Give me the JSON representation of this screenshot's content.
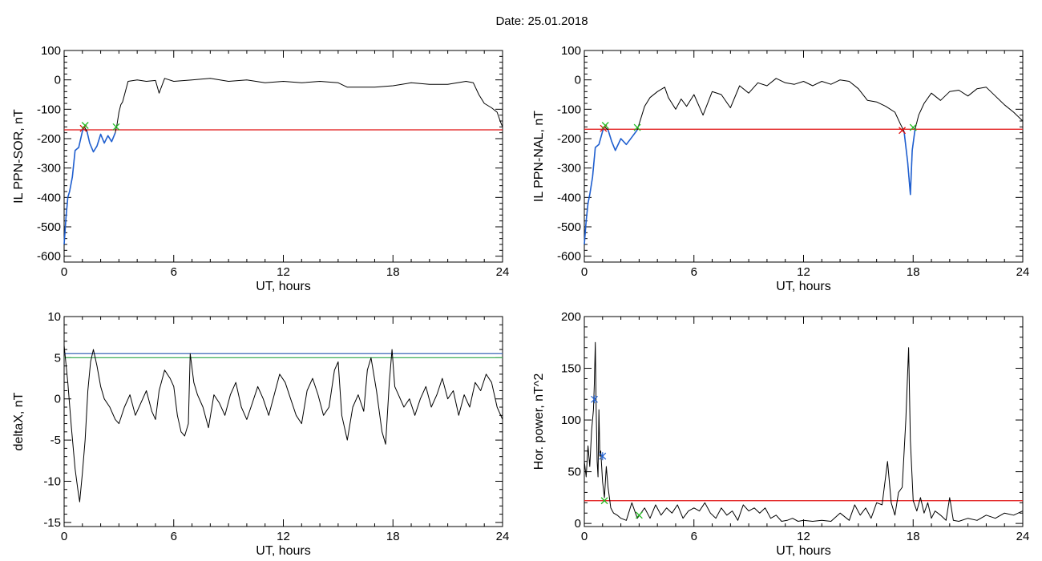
{
  "title": "Date:  25.01.2018",
  "colors": {
    "trace": "#000000",
    "highlight": "#1f5fd0",
    "threshold": "#e01010",
    "marker_start": "#e01010",
    "marker_end": "#22bb22",
    "marker_peak": "#1f5fd0",
    "ref_line_1": "#3b66b8",
    "ref_line_2": "#3fae5a"
  },
  "chart_data": [
    {
      "id": "il-ppn-sor",
      "type": "line",
      "title": "",
      "xlabel": "UT, hours",
      "ylabel": "IL PPN-SOR, nT",
      "xlim": [
        0,
        24
      ],
      "ylim": [
        -620,
        100
      ],
      "xticks": [
        0,
        6,
        12,
        18,
        24
      ],
      "yticks": [
        100,
        0,
        -100,
        -200,
        -300,
        -400,
        -500,
        -600
      ],
      "threshold": -170,
      "series": [
        {
          "role": "trace",
          "x": [
            0,
            0.1,
            0.2,
            0.3,
            0.45,
            0.6,
            0.8,
            1.0,
            1.1,
            1.25,
            1.4,
            1.6,
            1.8,
            2.0,
            2.2,
            2.4,
            2.6,
            2.8,
            2.9,
            3.0,
            3.1,
            3.2,
            3.35,
            3.5,
            4.0,
            4.5,
            5.0,
            5.2,
            5.5,
            6.0,
            7.0,
            8.0,
            9.0,
            10.0,
            11.0,
            12.0,
            13.0,
            14.0,
            15.0,
            15.5,
            16.0,
            17.0,
            18.0,
            19.0,
            20.0,
            21.0,
            22.0,
            22.4,
            22.7,
            23.0,
            23.4,
            23.7,
            23.9,
            24.0
          ],
          "y": [
            -560,
            -470,
            -400,
            -380,
            -330,
            -240,
            -230,
            -175,
            -160,
            -175,
            -215,
            -245,
            -225,
            -185,
            -215,
            -190,
            -210,
            -180,
            -150,
            -110,
            -85,
            -75,
            -40,
            -5,
            0,
            -5,
            -2,
            -45,
            5,
            -5,
            0,
            5,
            -5,
            0,
            -10,
            -5,
            -10,
            -5,
            -10,
            -25,
            -25,
            -25,
            -20,
            -10,
            -15,
            -15,
            -5,
            -10,
            -50,
            -80,
            -95,
            -110,
            -145,
            -160
          ]
        },
        {
          "role": "event",
          "x": [
            0.0,
            0.1,
            0.2,
            0.3,
            0.45,
            0.6,
            0.8,
            1.0,
            1.1
          ],
          "y": [
            -560,
            -470,
            -400,
            -380,
            -330,
            -240,
            -230,
            -175,
            -160
          ]
        },
        {
          "role": "event",
          "x": [
            1.25,
            1.4,
            1.6,
            1.8,
            2.0,
            2.2,
            2.4,
            2.6,
            2.8
          ],
          "y": [
            -175,
            -215,
            -245,
            -225,
            -185,
            -215,
            -190,
            -210,
            -180
          ]
        }
      ],
      "markers": [
        {
          "kind": "start",
          "x": 1.05,
          "y": -165
        },
        {
          "kind": "end",
          "x": 1.15,
          "y": -155
        },
        {
          "kind": "end",
          "x": 2.85,
          "y": -160
        }
      ]
    },
    {
      "id": "il-ppn-nal",
      "type": "line",
      "title": "",
      "xlabel": "UT, hours",
      "ylabel": "IL PPN-NAL, nT",
      "xlim": [
        0,
        24
      ],
      "ylim": [
        -620,
        100
      ],
      "xticks": [
        0,
        6,
        12,
        18,
        24
      ],
      "yticks": [
        100,
        0,
        -100,
        -200,
        -300,
        -400,
        -500,
        -600
      ],
      "threshold": -168,
      "series": [
        {
          "role": "trace",
          "x": [
            0,
            0.1,
            0.2,
            0.3,
            0.45,
            0.6,
            0.8,
            1.0,
            1.1,
            1.3,
            1.5,
            1.7,
            2.0,
            2.3,
            2.6,
            2.9,
            3.1,
            3.3,
            3.6,
            4.0,
            4.4,
            4.6,
            5.0,
            5.3,
            5.6,
            6.0,
            6.5,
            7.0,
            7.5,
            8.0,
            8.5,
            9.0,
            9.5,
            10.0,
            10.5,
            11.0,
            11.5,
            12.0,
            12.5,
            13.0,
            13.5,
            14.0,
            14.5,
            15.0,
            15.5,
            16.0,
            16.5,
            17.0,
            17.3,
            17.5,
            17.7,
            17.85,
            17.95,
            18.1,
            18.3,
            18.6,
            19.0,
            19.5,
            20.0,
            20.5,
            21.0,
            21.5,
            22.0,
            22.5,
            23.0,
            23.5,
            24.0
          ],
          "y": [
            -560,
            -480,
            -420,
            -390,
            -330,
            -230,
            -220,
            -175,
            -160,
            -170,
            -210,
            -240,
            -200,
            -220,
            -195,
            -170,
            -130,
            -90,
            -60,
            -40,
            -25,
            -60,
            -100,
            -65,
            -90,
            -50,
            -120,
            -40,
            -50,
            -95,
            -20,
            -45,
            -10,
            -20,
            5,
            -10,
            -15,
            -5,
            -20,
            -5,
            -15,
            0,
            -5,
            -30,
            -70,
            -75,
            -90,
            -110,
            -150,
            -175,
            -280,
            -390,
            -240,
            -170,
            -120,
            -80,
            -45,
            -70,
            -40,
            -35,
            -55,
            -30,
            -25,
            -55,
            -85,
            -110,
            -140
          ]
        },
        {
          "role": "event",
          "x": [
            0.0,
            0.1,
            0.2,
            0.3,
            0.45,
            0.6,
            0.8,
            1.0,
            1.1
          ],
          "y": [
            -560,
            -480,
            -420,
            -390,
            -330,
            -230,
            -220,
            -175,
            -160
          ]
        },
        {
          "role": "event",
          "x": [
            1.3,
            1.5,
            1.7,
            2.0,
            2.3,
            2.6,
            2.9
          ],
          "y": [
            -170,
            -210,
            -240,
            -200,
            -220,
            -195,
            -170
          ]
        },
        {
          "role": "event",
          "x": [
            17.5,
            17.7,
            17.85,
            17.95,
            18.1
          ],
          "y": [
            -175,
            -280,
            -390,
            -240,
            -170
          ]
        }
      ],
      "markers": [
        {
          "kind": "start",
          "x": 1.05,
          "y": -165
        },
        {
          "kind": "end",
          "x": 1.15,
          "y": -155
        },
        {
          "kind": "end",
          "x": 2.9,
          "y": -162
        },
        {
          "kind": "start",
          "x": 17.4,
          "y": -172
        },
        {
          "kind": "end",
          "x": 18.0,
          "y": -162
        }
      ]
    },
    {
      "id": "delta-x",
      "type": "line",
      "title": "",
      "xlabel": "UT, hours",
      "ylabel": "deltaX, nT",
      "xlim": [
        0,
        24
      ],
      "ylim": [
        -15.5,
        10
      ],
      "xticks": [
        0,
        6,
        12,
        18,
        24
      ],
      "yticks": [
        10,
        5,
        0,
        -5,
        -10,
        -15
      ],
      "ref_lines": [
        5.5,
        5.0
      ],
      "series": [
        {
          "role": "trace",
          "x": [
            0,
            0.2,
            0.4,
            0.6,
            0.75,
            0.85,
            1.0,
            1.15,
            1.3,
            1.45,
            1.6,
            1.8,
            2.0,
            2.2,
            2.5,
            2.8,
            3.0,
            3.3,
            3.6,
            3.9,
            4.2,
            4.5,
            4.8,
            5.0,
            5.2,
            5.5,
            5.8,
            6.0,
            6.2,
            6.4,
            6.6,
            6.8,
            6.9,
            7.1,
            7.3,
            7.6,
            7.9,
            8.2,
            8.5,
            8.8,
            9.1,
            9.4,
            9.7,
            10.0,
            10.3,
            10.6,
            10.9,
            11.2,
            11.5,
            11.8,
            12.1,
            12.4,
            12.7,
            13.0,
            13.3,
            13.6,
            13.9,
            14.2,
            14.5,
            14.8,
            15.0,
            15.2,
            15.5,
            15.8,
            16.1,
            16.4,
            16.6,
            16.8,
            17.1,
            17.4,
            17.6,
            17.8,
            17.95,
            18.1,
            18.3,
            18.6,
            18.9,
            19.2,
            19.5,
            19.8,
            20.1,
            20.4,
            20.7,
            21.0,
            21.3,
            21.6,
            21.9,
            22.2,
            22.5,
            22.8,
            23.1,
            23.4,
            23.7,
            24.0
          ],
          "y": [
            6.5,
            2.0,
            -3.5,
            -8.5,
            -11.0,
            -12.5,
            -9.0,
            -5.0,
            1.0,
            4.5,
            6.0,
            4.0,
            1.5,
            0.0,
            -1.0,
            -2.5,
            -3.0,
            -1.0,
            0.5,
            -2.0,
            -0.5,
            1.0,
            -1.5,
            -2.5,
            1.0,
            3.5,
            2.5,
            1.5,
            -2.0,
            -4.0,
            -4.5,
            -3.0,
            5.5,
            2.0,
            0.5,
            -1.0,
            -3.5,
            0.5,
            -0.5,
            -2.0,
            0.5,
            2.0,
            -1.0,
            -2.5,
            -0.5,
            1.5,
            0.0,
            -2.0,
            0.5,
            3.0,
            2.0,
            0.0,
            -2.0,
            -3.0,
            1.0,
            2.5,
            0.5,
            -2.0,
            -1.0,
            3.5,
            4.5,
            -2.0,
            -5.0,
            -1.0,
            0.5,
            -1.5,
            3.5,
            5.0,
            1.0,
            -4.0,
            -5.5,
            2.0,
            6.0,
            1.5,
            0.5,
            -1.0,
            0.0,
            -2.0,
            0.0,
            1.5,
            -1.0,
            0.5,
            2.5,
            0.0,
            1.0,
            -2.0,
            0.5,
            -1.0,
            2.0,
            1.0,
            3.0,
            2.0,
            -1.0,
            -2.5
          ]
        }
      ]
    },
    {
      "id": "hor-power",
      "type": "line",
      "title": "",
      "xlabel": "UT, hours",
      "ylabel": "Hor. power, nT^2",
      "xlim": [
        0,
        24
      ],
      "ylim": [
        -3,
        200
      ],
      "xticks": [
        0,
        6,
        12,
        18,
        24
      ],
      "yticks": [
        200,
        150,
        100,
        50,
        0
      ],
      "threshold": 22,
      "series": [
        {
          "role": "trace",
          "x": [
            0,
            0.1,
            0.2,
            0.3,
            0.4,
            0.5,
            0.55,
            0.6,
            0.65,
            0.7,
            0.75,
            0.8,
            0.85,
            0.9,
            1.0,
            1.1,
            1.2,
            1.3,
            1.45,
            1.6,
            1.8,
            2.0,
            2.3,
            2.6,
            2.9,
            3.1,
            3.3,
            3.6,
            3.9,
            4.2,
            4.5,
            4.8,
            5.1,
            5.4,
            5.7,
            6.0,
            6.3,
            6.6,
            6.9,
            7.2,
            7.5,
            7.8,
            8.1,
            8.4,
            8.7,
            9.0,
            9.3,
            9.6,
            9.9,
            10.2,
            10.5,
            10.8,
            11.1,
            11.4,
            11.7,
            12.0,
            12.5,
            13.0,
            13.5,
            14.0,
            14.5,
            14.8,
            15.1,
            15.4,
            15.7,
            16.0,
            16.3,
            16.6,
            16.8,
            17.0,
            17.2,
            17.4,
            17.6,
            17.75,
            17.85,
            18.0,
            18.2,
            18.4,
            18.6,
            18.8,
            19.0,
            19.2,
            19.5,
            19.8,
            20.0,
            20.2,
            20.5,
            21.0,
            21.5,
            22.0,
            22.5,
            23.0,
            23.5,
            24.0
          ],
          "y": [
            60,
            45,
            75,
            55,
            90,
            110,
            135,
            175,
            110,
            60,
            45,
            110,
            65,
            70,
            40,
            25,
            55,
            35,
            15,
            10,
            8,
            5,
            3,
            20,
            5,
            10,
            15,
            5,
            18,
            8,
            15,
            10,
            18,
            5,
            12,
            15,
            12,
            20,
            10,
            5,
            15,
            8,
            12,
            3,
            18,
            12,
            15,
            10,
            15,
            5,
            8,
            2,
            3,
            5,
            2,
            3,
            2,
            3,
            2,
            10,
            3,
            18,
            8,
            15,
            5,
            20,
            18,
            60,
            20,
            8,
            30,
            35,
            100,
            170,
            80,
            22,
            12,
            25,
            10,
            20,
            5,
            12,
            8,
            3,
            25,
            3,
            2,
            5,
            3,
            8,
            5,
            10,
            8,
            12
          ]
        }
      ],
      "markers": [
        {
          "kind": "peak",
          "x": 0.55,
          "y": 120
        },
        {
          "kind": "peak",
          "x": 1.0,
          "y": 65
        },
        {
          "kind": "end",
          "x": 1.1,
          "y": 22
        },
        {
          "kind": "end",
          "x": 3.0,
          "y": 8
        }
      ]
    }
  ]
}
